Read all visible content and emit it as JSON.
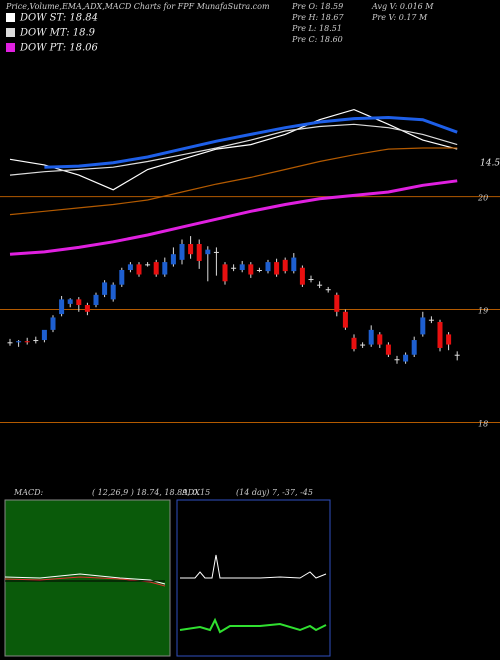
{
  "chart_data": {
    "type": "candlestick",
    "title": "Price,Volume,EMA,ADX,MACD Charts for FPF MunafaSutra.com",
    "stats": [
      "Pre  O: 18.59",
      "Pre  H: 18.67",
      "Pre  L: 18.51",
      "Pre  C: 18.60",
      "Avg V: 0.016  M",
      "Pre  V: 0.17  M"
    ],
    "side_label": "14.5",
    "ylim": [
      17.5,
      21.2
    ],
    "yticks": [
      18,
      19,
      20
    ],
    "grid": true,
    "grid_color": "#b35a00",
    "candles": {
      "up_color": "#1e5fd0",
      "down_color": "#e81010",
      "open": [
        18.71,
        18.71,
        18.72,
        18.73,
        18.73,
        18.82,
        18.96,
        19.05,
        19.09,
        19.04,
        19.04,
        19.13,
        19.09,
        19.22,
        19.35,
        19.4,
        19.4,
        19.42,
        19.31,
        19.4,
        19.44,
        19.58,
        19.58,
        19.49,
        19.51,
        19.4,
        19.37,
        19.35,
        19.4,
        19.35,
        19.34,
        19.42,
        19.44,
        19.34,
        19.37,
        19.27,
        19.22,
        19.18,
        19.13,
        18.98,
        18.75,
        18.69,
        18.69,
        18.78,
        18.69,
        18.56,
        18.54,
        18.6,
        18.78,
        18.91,
        18.89,
        18.78,
        18.6
      ],
      "high": [
        18.74,
        18.73,
        18.75,
        18.76,
        18.8,
        18.95,
        19.12,
        19.1,
        19.11,
        19.06,
        19.15,
        19.26,
        19.24,
        19.37,
        19.42,
        19.42,
        19.42,
        19.44,
        19.46,
        19.55,
        19.62,
        19.65,
        19.62,
        19.56,
        19.55,
        19.42,
        19.4,
        19.43,
        19.42,
        19.37,
        19.44,
        19.45,
        19.46,
        19.5,
        19.39,
        19.3,
        19.25,
        19.2,
        19.15,
        19.0,
        18.78,
        18.71,
        18.86,
        18.8,
        18.71,
        18.59,
        18.62,
        18.76,
        18.98,
        18.94,
        18.91,
        18.8,
        18.63
      ],
      "low": [
        18.68,
        18.67,
        18.69,
        18.7,
        18.71,
        18.8,
        18.94,
        19.02,
        18.98,
        18.95,
        19.02,
        19.11,
        19.07,
        19.2,
        19.33,
        19.29,
        19.38,
        19.29,
        19.29,
        19.38,
        19.4,
        19.45,
        19.36,
        19.25,
        19.3,
        19.22,
        19.34,
        19.33,
        19.28,
        19.33,
        19.32,
        19.29,
        19.32,
        19.32,
        19.2,
        19.24,
        19.19,
        19.15,
        18.94,
        18.82,
        18.63,
        18.66,
        18.67,
        18.66,
        18.58,
        18.52,
        18.52,
        18.58,
        18.76,
        18.88,
        18.63,
        18.64,
        18.55
      ],
      "close": [
        18.71,
        18.72,
        18.71,
        18.73,
        18.82,
        18.93,
        19.09,
        19.09,
        19.04,
        18.98,
        19.13,
        19.24,
        19.22,
        19.35,
        19.4,
        19.31,
        19.4,
        19.31,
        19.42,
        19.49,
        19.58,
        19.49,
        19.43,
        19.53,
        19.51,
        19.25,
        19.37,
        19.4,
        19.31,
        19.35,
        19.42,
        19.31,
        19.34,
        19.46,
        19.22,
        19.27,
        19.22,
        19.18,
        18.98,
        18.84,
        18.65,
        18.69,
        18.82,
        18.69,
        18.6,
        18.56,
        18.6,
        18.73,
        18.93,
        18.91,
        18.66,
        18.69,
        18.6
      ]
    },
    "series": [
      {
        "name": "DOW ST: 18.84",
        "color": "#ffffff",
        "x": [
          0,
          4,
          8,
          12,
          16,
          20,
          24,
          28,
          32,
          36,
          40,
          44,
          48,
          52
        ],
        "values": [
          20.33,
          20.28,
          20.19,
          20.06,
          20.24,
          20.33,
          20.42,
          20.46,
          20.55,
          20.68,
          20.77,
          20.64,
          20.5,
          20.42
        ]
      },
      {
        "name": "DOW MT: 18.9",
        "color": "#dddddd",
        "x": [
          0,
          4,
          8,
          12,
          16,
          20,
          24,
          28,
          32,
          36,
          40,
          44,
          48,
          52
        ],
        "values": [
          20.19,
          20.22,
          20.24,
          20.26,
          20.31,
          20.37,
          20.43,
          20.5,
          20.58,
          20.62,
          20.64,
          20.61,
          20.55,
          20.46
        ]
      },
      {
        "name": "DOW PT: 18.06",
        "color": "#e020e0",
        "x": [
          0,
          4,
          8,
          12,
          16,
          20,
          24,
          28,
          32,
          36,
          40,
          44,
          48,
          52
        ],
        "values": [
          19.49,
          19.51,
          19.55,
          19.6,
          19.66,
          19.73,
          19.8,
          19.87,
          19.93,
          19.98,
          20.01,
          20.04,
          20.1,
          20.14
        ]
      },
      {
        "color": "#1e5fe8",
        "x": [
          4,
          8,
          12,
          16,
          20,
          24,
          28,
          32,
          36,
          40,
          44,
          48,
          52
        ],
        "values": [
          20.26,
          20.27,
          20.3,
          20.35,
          20.42,
          20.49,
          20.55,
          20.61,
          20.66,
          20.69,
          20.7,
          20.68,
          20.57
        ]
      },
      {
        "color": "#b35a00",
        "x": [
          0,
          4,
          8,
          12,
          16,
          20,
          24,
          28,
          32,
          36,
          40,
          44,
          48,
          52
        ],
        "values": [
          19.84,
          19.87,
          19.9,
          19.93,
          19.97,
          20.04,
          20.11,
          20.17,
          20.24,
          20.31,
          20.37,
          20.42,
          20.43,
          20.43
        ]
      }
    ],
    "macd": {
      "label": "MACD:",
      "params": "( 12,26,9 ) 18.74, 18.89, 0.15"
    },
    "adx": {
      "label": "ADX",
      "params": "(14  day) 7, -37, -45"
    }
  }
}
